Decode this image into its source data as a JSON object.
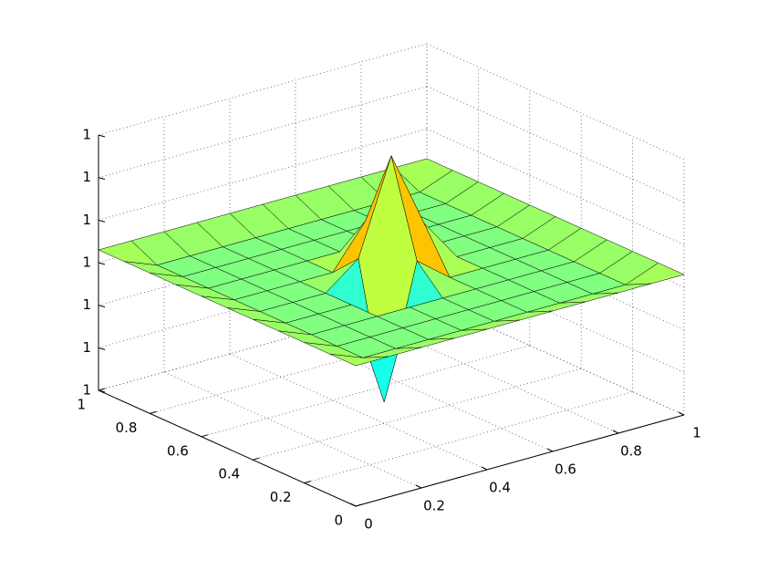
{
  "chart_data": {
    "type": "surface",
    "x": [
      0,
      0.1,
      0.2,
      0.3,
      0.4,
      0.5,
      0.6,
      0.7,
      0.8,
      0.9,
      1
    ],
    "y": [
      0,
      0.1,
      0.2,
      0.3,
      0.4,
      0.5,
      0.6,
      0.7,
      0.8,
      0.9,
      1
    ],
    "z": [
      [
        1.000003,
        1.000003,
        1.000003,
        1.000003,
        1.000003,
        1.000003,
        1.000003,
        1.000003,
        1.000003,
        1.000003,
        1.000003
      ],
      [
        1.000003,
        1,
        1,
        1,
        1,
        1,
        1,
        1,
        1,
        1,
        1.000003
      ],
      [
        1.000003,
        1,
        1,
        1,
        1,
        1,
        1,
        1,
        1,
        1,
        1.000003
      ],
      [
        1.000003,
        1,
        1,
        1,
        1,
        1,
        1,
        1,
        1,
        1,
        1.000003
      ],
      [
        1.000003,
        1,
        1,
        1,
        0.999975,
        1.000006,
        1,
        1,
        1,
        1,
        1.000003
      ],
      [
        1.000003,
        1,
        1,
        1,
        1.000006,
        1.000028,
        1.00001,
        1,
        1,
        1,
        1.000003
      ],
      [
        1.000003,
        1,
        1,
        1,
        1,
        1.00001,
        1,
        1,
        1,
        1,
        1.000003
      ],
      [
        1.000003,
        1,
        1,
        1,
        1,
        1,
        1,
        1,
        1,
        1,
        1.000003
      ],
      [
        1.000003,
        1,
        1,
        1,
        1,
        1,
        1,
        1,
        1,
        1,
        1.000003
      ],
      [
        1.000003,
        1,
        1,
        1,
        1,
        1,
        1,
        1,
        1,
        1,
        1.000003
      ],
      [
        1.000003,
        1.000003,
        1.000003,
        1.000003,
        1.000003,
        1.000003,
        1.000003,
        1.000003,
        1.000003,
        1.000003,
        1.000003
      ]
    ],
    "colormap": "jet",
    "xlim": [
      0,
      1
    ],
    "ylim": [
      0,
      1
    ],
    "zlim": [
      0.99997,
      1.00003
    ],
    "xticks": [
      0,
      0.2,
      0.4,
      0.6,
      0.8,
      1
    ],
    "yticks": [
      0,
      0.2,
      0.4,
      0.6,
      0.8,
      1
    ],
    "zticks": [
      {
        "value": 0.99997,
        "label": "1"
      },
      {
        "value": 0.99998,
        "label": "1"
      },
      {
        "value": 0.99999,
        "label": "1"
      },
      {
        "value": 1,
        "label": "1"
      },
      {
        "value": 1.00001,
        "label": "1"
      },
      {
        "value": 1.00002,
        "label": "1"
      },
      {
        "value": 1.00003,
        "label": "1"
      }
    ],
    "grid": true
  }
}
